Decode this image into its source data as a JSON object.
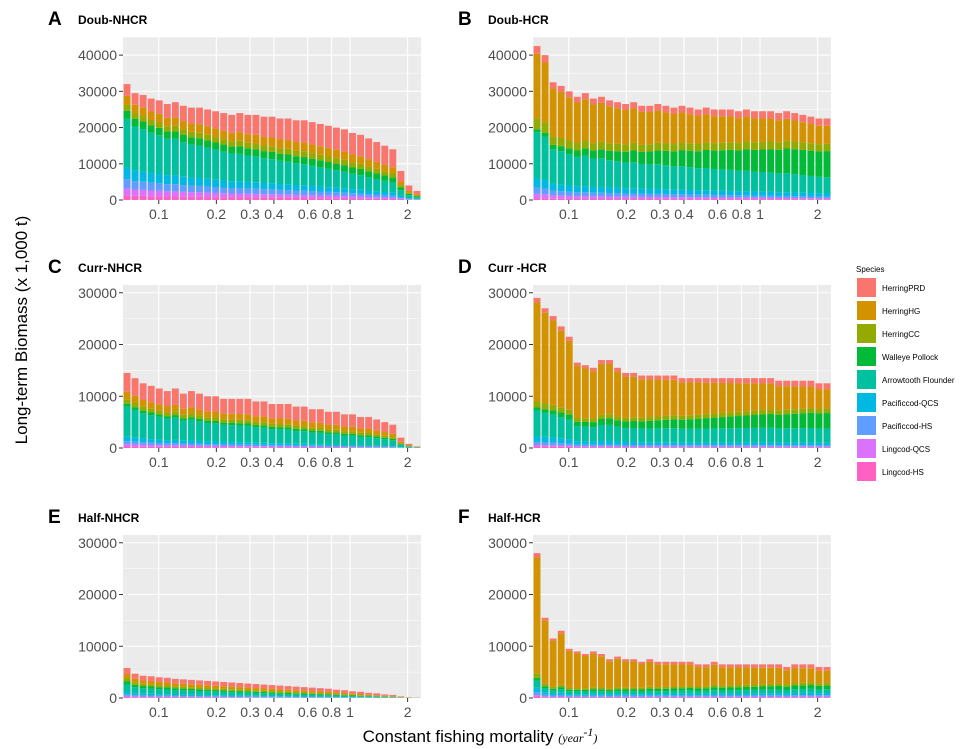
{
  "figure": {
    "y_axis_title": "Long-term Biomass (x 1,000 t)",
    "x_axis_title": "Constant fishing mortality",
    "x_axis_unit": "(year",
    "x_axis_unit_sup": "-1",
    "x_axis_unit_close": ")",
    "x_tick_labels": [
      "0.1",
      "0.2",
      "0.3",
      "0.4",
      "0.6",
      "0.8",
      "1",
      "2"
    ],
    "legend_title": "Species"
  },
  "chart_data": [
    {
      "panel": "A",
      "title": "Doub-NHCR",
      "type": "bar",
      "stacked": true,
      "x_scale": "log",
      "x_ticks": [
        0.1,
        0.2,
        0.3,
        0.4,
        0.6,
        0.8,
        1,
        2
      ],
      "y_ticks": [
        0,
        10000,
        20000,
        30000,
        40000
      ],
      "ylim": [
        0,
        45000
      ],
      "totals": [
        32000,
        29500,
        29000,
        28000,
        27500,
        26500,
        27000,
        26000,
        25500,
        25500,
        25000,
        24500,
        24000,
        23500,
        24000,
        23500,
        23500,
        23000,
        23000,
        22500,
        22500,
        22000,
        22000,
        21500,
        21000,
        20500,
        20000,
        19500,
        18500,
        18000,
        17000,
        16000,
        15000,
        14000,
        8000,
        4000,
        2500
      ],
      "composition": {
        "HerringPRD": [
          0.1,
          0.45
        ],
        "HerringHG": [
          0.08,
          0.15
        ],
        "HerringCC": [
          0.05,
          0.1
        ],
        "Walleye Pollock": [
          0.07,
          0.12
        ],
        "Arrowtooth Flounder": [
          0.42,
          0.22
        ],
        "Pacificcod-QCS": [
          0.1,
          0.06
        ],
        "Pacificcod-HS": [
          0.08,
          0.05
        ],
        "Lingcod-QCS": [
          0.06,
          0.03
        ],
        "Lingcod-HS": [
          0.04,
          0.02
        ]
      }
    },
    {
      "panel": "B",
      "title": "Doub-HCR",
      "type": "bar",
      "stacked": true,
      "x_scale": "log",
      "x_ticks": [
        0.1,
        0.2,
        0.3,
        0.4,
        0.6,
        0.8,
        1,
        2
      ],
      "y_ticks": [
        0,
        10000,
        20000,
        30000,
        40000
      ],
      "ylim": [
        0,
        45000
      ],
      "totals": [
        42500,
        40000,
        32500,
        31500,
        30000,
        28500,
        29500,
        28000,
        28500,
        27500,
        27000,
        26500,
        27000,
        26000,
        26000,
        26500,
        26000,
        25500,
        26000,
        25500,
        25000,
        25500,
        25000,
        25000,
        25000,
        24500,
        25000,
        24500,
        24500,
        24500,
        24000,
        24500,
        24000,
        23500,
        23000,
        22500,
        22500
      ],
      "composition": {
        "HerringPRD": [
          0.05,
          0.09
        ],
        "HerringHG": [
          0.42,
          0.22
        ],
        "HerringCC": [
          0.07,
          0.09
        ],
        "Walleye Pollock": [
          0.02,
          0.32
        ],
        "Arrowtooth Flounder": [
          0.3,
          0.2
        ],
        "Pacificcod-QCS": [
          0.06,
          0.04
        ],
        "Pacificcod-HS": [
          0.04,
          0.02
        ],
        "Lingcod-QCS": [
          0.03,
          0.01
        ],
        "Lingcod-HS": [
          0.01,
          0.01
        ]
      }
    },
    {
      "panel": "C",
      "title": "Curr-NHCR",
      "type": "bar",
      "stacked": true,
      "x_scale": "log",
      "x_ticks": [
        0.1,
        0.2,
        0.3,
        0.4,
        0.6,
        0.8,
        1,
        2
      ],
      "y_ticks": [
        0,
        10000,
        20000,
        30000
      ],
      "ylim": [
        0,
        31500
      ],
      "totals": [
        14500,
        13500,
        12500,
        12000,
        11500,
        11000,
        11500,
        10500,
        11000,
        10500,
        10000,
        10000,
        9500,
        9500,
        9500,
        9500,
        9000,
        9000,
        8500,
        8500,
        8500,
        8000,
        8000,
        7500,
        7500,
        7000,
        7000,
        6500,
        6500,
        6000,
        6000,
        5500,
        5000,
        4500,
        2000,
        800,
        300
      ],
      "composition": {
        "HerringPRD": [
          0.25,
          0.4
        ],
        "HerringHG": [
          0.1,
          0.15
        ],
        "HerringCC": [
          0.06,
          0.08
        ],
        "Walleye Pollock": [
          0.04,
          0.06
        ],
        "Arrowtooth Flounder": [
          0.4,
          0.24
        ],
        "Pacificcod-QCS": [
          0.06,
          0.03
        ],
        "Pacificcod-HS": [
          0.04,
          0.02
        ],
        "Lingcod-QCS": [
          0.03,
          0.01
        ],
        "Lingcod-HS": [
          0.02,
          0.01
        ]
      }
    },
    {
      "panel": "D",
      "title": "Curr -HCR",
      "type": "bar",
      "stacked": true,
      "x_scale": "log",
      "x_ticks": [
        0.1,
        0.2,
        0.3,
        0.4,
        0.6,
        0.8,
        1,
        2
      ],
      "y_ticks": [
        0,
        10000,
        20000,
        30000
      ],
      "ylim": [
        0,
        31500
      ],
      "totals": [
        29000,
        27000,
        25500,
        23500,
        21500,
        16500,
        16000,
        15500,
        17000,
        17000,
        15500,
        14500,
        14500,
        14000,
        14000,
        14000,
        14000,
        14000,
        13500,
        13500,
        13500,
        13500,
        13500,
        13500,
        13500,
        13500,
        13500,
        13500,
        13500,
        13500,
        13000,
        13000,
        13000,
        13000,
        13000,
        12500,
        12500
      ],
      "composition": {
        "HerringPRD": [
          0.03,
          0.09
        ],
        "HerringHG": [
          0.66,
          0.3
        ],
        "HerringCC": [
          0.04,
          0.07
        ],
        "Walleye Pollock": [
          0.02,
          0.24
        ],
        "Arrowtooth Flounder": [
          0.17,
          0.22
        ],
        "Pacificcod-QCS": [
          0.04,
          0.04
        ],
        "Pacificcod-HS": [
          0.02,
          0.02
        ],
        "Lingcod-QCS": [
          0.01,
          0.01
        ],
        "Lingcod-HS": [
          0.01,
          0.01
        ]
      }
    },
    {
      "panel": "E",
      "title": "Half-NHCR",
      "type": "bar",
      "stacked": true,
      "x_scale": "log",
      "x_ticks": [
        0.1,
        0.2,
        0.3,
        0.4,
        0.6,
        0.8,
        1,
        2
      ],
      "y_ticks": [
        0,
        10000,
        20000,
        30000
      ],
      "ylim": [
        0,
        31500
      ],
      "totals": [
        5800,
        4700,
        4300,
        4200,
        4000,
        3900,
        3700,
        3600,
        3500,
        3400,
        3300,
        3200,
        3100,
        3000,
        2900,
        2800,
        2700,
        2600,
        2500,
        2400,
        2300,
        2200,
        2100,
        2000,
        1900,
        1800,
        1600,
        1500,
        1300,
        1200,
        1000,
        900,
        700,
        600,
        300,
        150,
        80
      ],
      "composition": {
        "HerringPRD": [
          0.2,
          0.4
        ],
        "HerringHG": [
          0.15,
          0.18
        ],
        "HerringCC": [
          0.1,
          0.1
        ],
        "Walleye Pollock": [
          0.1,
          0.08
        ],
        "Arrowtooth Flounder": [
          0.25,
          0.14
        ],
        "Pacificcod-QCS": [
          0.08,
          0.04
        ],
        "Pacificcod-HS": [
          0.05,
          0.03
        ],
        "Lingcod-QCS": [
          0.04,
          0.02
        ],
        "Lingcod-HS": [
          0.03,
          0.01
        ]
      }
    },
    {
      "panel": "F",
      "title": "Half-HCR",
      "type": "bar",
      "stacked": true,
      "x_scale": "log",
      "x_ticks": [
        0.1,
        0.2,
        0.3,
        0.4,
        0.6,
        0.8,
        1,
        2
      ],
      "y_ticks": [
        0,
        10000,
        20000,
        30000
      ],
      "ylim": [
        0,
        31500
      ],
      "totals": [
        28000,
        15500,
        11500,
        13000,
        9500,
        9000,
        8500,
        9000,
        8500,
        7500,
        8000,
        7500,
        7500,
        7000,
        7500,
        7000,
        7000,
        7000,
        7000,
        7000,
        6500,
        6500,
        7000,
        6500,
        6500,
        6500,
        6500,
        6500,
        6500,
        6500,
        6500,
        6000,
        6500,
        6500,
        6500,
        6000,
        6000
      ],
      "composition": {
        "HerringPRD": [
          0.03,
          0.12
        ],
        "HerringHG": [
          0.8,
          0.4
        ],
        "HerringCC": [
          0.03,
          0.08
        ],
        "Walleye Pollock": [
          0.02,
          0.12
        ],
        "Arrowtooth Flounder": [
          0.05,
          0.12
        ],
        "Pacificcod-QCS": [
          0.03,
          0.07
        ],
        "Pacificcod-HS": [
          0.02,
          0.04
        ],
        "Lingcod-QCS": [
          0.01,
          0.03
        ],
        "Lingcod-HS": [
          0.01,
          0.02
        ]
      }
    }
  ],
  "legend": [
    {
      "label": "HerringPRD",
      "color": "#f8766d"
    },
    {
      "label": "HerringHG",
      "color": "#d39200"
    },
    {
      "label": "HerringCC",
      "color": "#93aa00"
    },
    {
      "label": "Walleye Pollock",
      "color": "#00ba38"
    },
    {
      "label": "Arrowtooth Flounder",
      "color": "#00c19f"
    },
    {
      "label": "Pacificcod-QCS",
      "color": "#00b9e3"
    },
    {
      "label": "Pacificcod-HS",
      "color": "#619cff"
    },
    {
      "label": "Lingcod-QCS",
      "color": "#db72fb"
    },
    {
      "label": "Lingcod-HS",
      "color": "#ff61c3"
    }
  ]
}
